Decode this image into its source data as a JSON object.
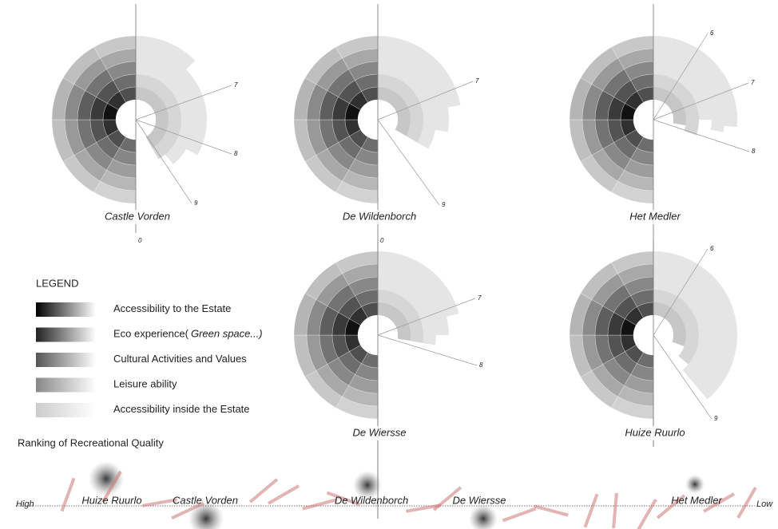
{
  "legend": {
    "title": "LEGEND",
    "items": [
      {
        "label": "Accessibility to the Estate"
      },
      {
        "label": "Eco experience(",
        "note": "Green space...)"
      },
      {
        "label": "Cultural Activities and Values"
      },
      {
        "label": "Leisure ability"
      },
      {
        "label": "Accessibility inside the Estate"
      }
    ]
  },
  "diagrams": [
    {
      "name": "Castle Vorden",
      "spokes": [
        "7",
        "8",
        "9",
        "0"
      ]
    },
    {
      "name": "De Wildenborch",
      "spokes": [
        "7",
        "9",
        "0"
      ]
    },
    {
      "name": "Het Medler",
      "spokes": [
        "6",
        "7",
        "8"
      ]
    },
    {
      "name": "De Wiersse",
      "spokes": [
        "7",
        "8"
      ]
    },
    {
      "name": "Huize Ruurlo",
      "spokes": [
        "6",
        "9"
      ]
    }
  ],
  "ranking": {
    "title": "Ranking of Recreational Quality",
    "high": "High",
    "low": "Low",
    "places": [
      "Huize Ruurlo",
      "Castle Vorden",
      "De Wildenborch",
      "De Wiersse",
      "Het Medler"
    ]
  }
}
